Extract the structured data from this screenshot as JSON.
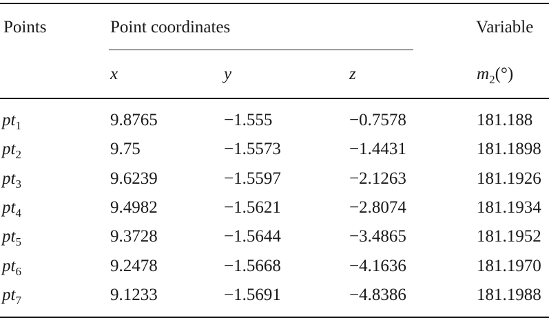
{
  "header": {
    "points_label": "Points",
    "coords_label": "Point coordinates",
    "variable_label": "Variable",
    "x_label": "x",
    "y_label": "y",
    "z_label": "z",
    "m_var": "m",
    "m_sub": "2",
    "m_unit": "(°)"
  },
  "rows": [
    {
      "pt": "pt",
      "sub": "1",
      "x": "9.8765",
      "y": "−1.555",
      "z": "−0.7578",
      "m": "181.188"
    },
    {
      "pt": "pt",
      "sub": "2",
      "x": "9.75",
      "y": "−1.5573",
      "z": "−1.4431",
      "m": "181.1898"
    },
    {
      "pt": "pt",
      "sub": "3",
      "x": "9.6239",
      "y": "−1.5597",
      "z": "−2.1263",
      "m": "181.1926"
    },
    {
      "pt": "pt",
      "sub": "4",
      "x": "9.4982",
      "y": "−1.5621",
      "z": "−2.8074",
      "m": "181.1934"
    },
    {
      "pt": "pt",
      "sub": "5",
      "x": "9.3728",
      "y": "−1.5644",
      "z": "−3.4865",
      "m": "181.1952"
    },
    {
      "pt": "pt",
      "sub": "6",
      "x": "9.2478",
      "y": "−1.5668",
      "z": "−4.1636",
      "m": "181.1970"
    },
    {
      "pt": "pt",
      "sub": "7",
      "x": "9.1233",
      "y": "−1.5691",
      "z": "−4.8386",
      "m": "181.1988"
    }
  ]
}
